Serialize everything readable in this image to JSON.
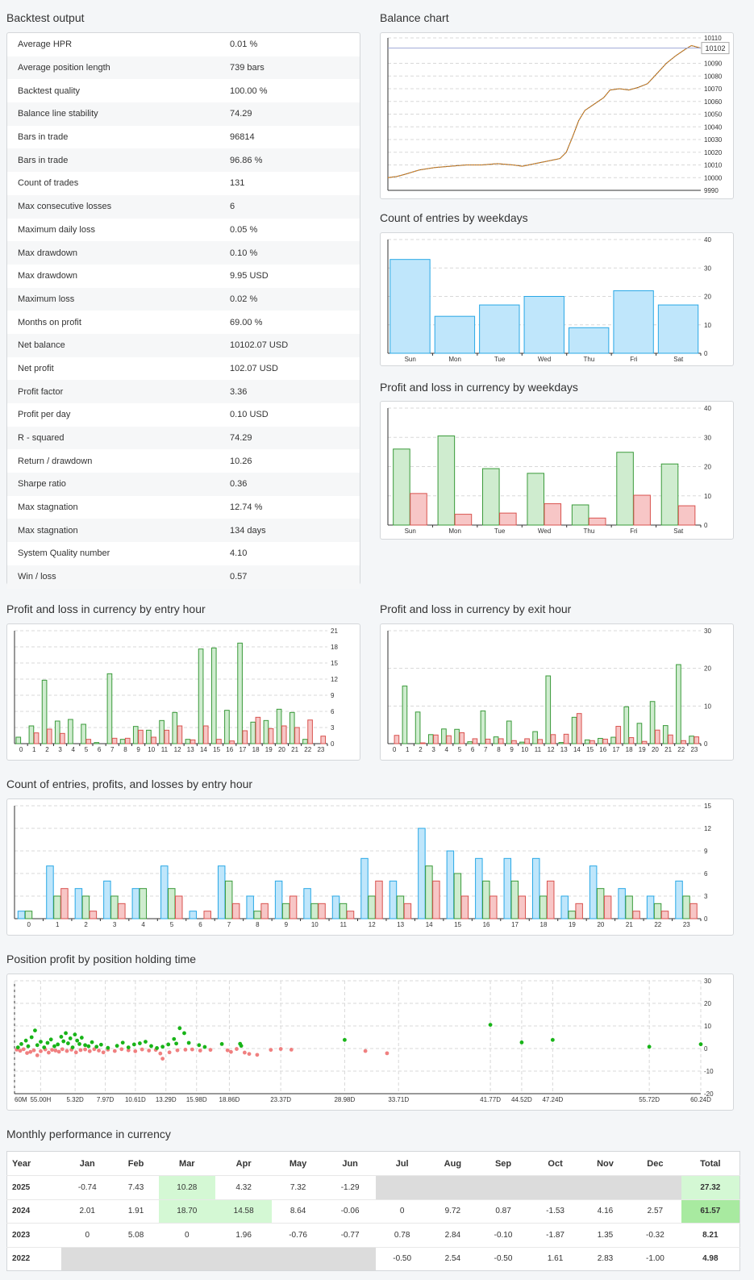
{
  "sections": {
    "backtest": "Backtest output",
    "balance": "Balance chart",
    "weekday_count": "Count of entries by weekdays",
    "weekday_pl": "Profit and loss in currency by weekdays",
    "entry_hour_pl": "Profit and loss in currency by entry hour",
    "exit_hour_pl": "Profit and loss in currency by exit hour",
    "entry_hour_count": "Count of entries, profits, and losses by entry hour",
    "holding_time": "Position profit by position holding time",
    "monthly": "Monthly performance in currency"
  },
  "stats": [
    {
      "label": "Average HPR",
      "value": "0.01 %"
    },
    {
      "label": "Average position length",
      "value": "739 bars"
    },
    {
      "label": "Backtest quality",
      "value": "100.00 %"
    },
    {
      "label": "Balance line stability",
      "value": "74.29"
    },
    {
      "label": "Bars in trade",
      "value": "96814"
    },
    {
      "label": "Bars in trade",
      "value": "96.86 %"
    },
    {
      "label": "Count of trades",
      "value": "131"
    },
    {
      "label": "Max consecutive losses",
      "value": "6"
    },
    {
      "label": "Maximum daily loss",
      "value": "0.05 %"
    },
    {
      "label": "Max drawdown",
      "value": "0.10 %"
    },
    {
      "label": "Max drawdown",
      "value": "9.95 USD"
    },
    {
      "label": "Maximum loss",
      "value": "0.02 %"
    },
    {
      "label": "Months on profit",
      "value": "69.00 %"
    },
    {
      "label": "Net balance",
      "value": "10102.07 USD"
    },
    {
      "label": "Net profit",
      "value": "102.07 USD"
    },
    {
      "label": "Profit factor",
      "value": "3.36"
    },
    {
      "label": "Profit per day",
      "value": "0.10 USD"
    },
    {
      "label": "R - squared",
      "value": "74.29"
    },
    {
      "label": "Return / drawdown",
      "value": "10.26"
    },
    {
      "label": "Sharpe ratio",
      "value": "0.36"
    },
    {
      "label": "Max stagnation",
      "value": "12.74 %"
    },
    {
      "label": "Max stagnation",
      "value": "134 days"
    },
    {
      "label": "System Quality number",
      "value": "4.10"
    },
    {
      "label": "Win / loss",
      "value": "0.57"
    }
  ],
  "chart_data": [
    {
      "id": "balance",
      "type": "line",
      "ylim": [
        9990,
        10110
      ],
      "yticks": [
        9990,
        10000,
        10010,
        10020,
        10030,
        10040,
        10050,
        10060,
        10070,
        10080,
        10090,
        10102,
        10110
      ],
      "current_label": "10102",
      "current_value": 10102,
      "points": [
        [
          0,
          10000
        ],
        [
          0.03,
          10001
        ],
        [
          0.06,
          10003
        ],
        [
          0.1,
          10006
        ],
        [
          0.15,
          10008
        ],
        [
          0.2,
          10009
        ],
        [
          0.25,
          10010
        ],
        [
          0.3,
          10010
        ],
        [
          0.35,
          10011
        ],
        [
          0.4,
          10010
        ],
        [
          0.43,
          10009
        ],
        [
          0.47,
          10011
        ],
        [
          0.51,
          10013
        ],
        [
          0.55,
          10015
        ],
        [
          0.57,
          10020
        ],
        [
          0.59,
          10032
        ],
        [
          0.61,
          10045
        ],
        [
          0.63,
          10053
        ],
        [
          0.66,
          10058
        ],
        [
          0.69,
          10063
        ],
        [
          0.71,
          10069
        ],
        [
          0.74,
          10070
        ],
        [
          0.77,
          10069
        ],
        [
          0.8,
          10071
        ],
        [
          0.83,
          10074
        ],
        [
          0.86,
          10082
        ],
        [
          0.89,
          10090
        ],
        [
          0.92,
          10096
        ],
        [
          0.95,
          10101
        ],
        [
          0.97,
          10104
        ],
        [
          1,
          10102
        ]
      ]
    },
    {
      "id": "weekday_count",
      "type": "bar",
      "categories": [
        "Sun",
        "Mon",
        "Tue",
        "Wed",
        "Thu",
        "Fri",
        "Sat"
      ],
      "ylim": [
        0,
        40
      ],
      "yticks": [
        0,
        10,
        20,
        30,
        40
      ],
      "series": [
        {
          "color": "#bfe6fb",
          "values": [
            33,
            13,
            17,
            20,
            9,
            22,
            17
          ]
        }
      ]
    },
    {
      "id": "weekday_pl",
      "type": "bar",
      "categories": [
        "Sun",
        "Mon",
        "Tue",
        "Wed",
        "Thu",
        "Fri",
        "Sat"
      ],
      "ylim": [
        0,
        40
      ],
      "yticks": [
        0,
        10,
        20,
        30,
        40
      ],
      "series": [
        {
          "color": "#cfeccf",
          "values": [
            26,
            30.5,
            19.3,
            17.7,
            6.9,
            24.9,
            20.9
          ]
        },
        {
          "color": "#f7c6c6",
          "values": [
            10.8,
            3.7,
            4.1,
            7.3,
            2.4,
            10.2,
            6.6
          ]
        }
      ]
    },
    {
      "id": "entry_hour_pl",
      "type": "bar",
      "categories": [
        "0",
        "1",
        "2",
        "3",
        "4",
        "5",
        "6",
        "7",
        "8",
        "9",
        "10",
        "11",
        "12",
        "13",
        "14",
        "15",
        "16",
        "17",
        "18",
        "19",
        "20",
        "21",
        "22",
        "23"
      ],
      "ylim": [
        0,
        21
      ],
      "yticks": [
        0,
        3,
        6,
        9,
        12,
        15,
        18,
        21
      ],
      "series": [
        {
          "color": "#cfeccf",
          "values": [
            1.2,
            3.3,
            11.8,
            4.2,
            4.5,
            3.6,
            0.2,
            13,
            0.8,
            3.2,
            2.5,
            4.3,
            5.8,
            0.8,
            17.6,
            17.8,
            6.2,
            18.7,
            4,
            4.3,
            6.4,
            5.8,
            0.8,
            0
          ]
        },
        {
          "color": "#f7c6c6",
          "values": [
            0,
            2,
            2.7,
            1.9,
            0,
            0.8,
            0,
            1,
            1,
            2.5,
            1.2,
            2.5,
            3.3,
            0.7,
            3.3,
            0.8,
            0.5,
            2.4,
            4.9,
            2.8,
            3.3,
            3,
            4.4,
            1.4
          ]
        }
      ]
    },
    {
      "id": "exit_hour_pl",
      "type": "bar",
      "categories": [
        "0",
        "1",
        "2",
        "3",
        "4",
        "5",
        "6",
        "7",
        "8",
        "9",
        "10",
        "11",
        "12",
        "13",
        "14",
        "15",
        "16",
        "17",
        "18",
        "19",
        "20",
        "21",
        "22",
        "23"
      ],
      "ylim": [
        0,
        30
      ],
      "yticks": [
        0,
        10,
        20,
        30
      ],
      "series": [
        {
          "color": "#cfeccf",
          "values": [
            0,
            15.3,
            8.4,
            2.4,
            3.9,
            3.8,
            0.5,
            8.7,
            1.8,
            6,
            0.4,
            3.2,
            18,
            0.3,
            7,
            1,
            1.4,
            1.7,
            9.8,
            5.4,
            11.2,
            4.8,
            21,
            2
          ]
        },
        {
          "color": "#f7c6c6",
          "values": [
            2.2,
            0,
            0.2,
            2.3,
            2.1,
            2.9,
            1.3,
            1.2,
            1.3,
            0.8,
            1.3,
            1.1,
            2.4,
            2.5,
            8,
            0.8,
            1.2,
            4.6,
            1.6,
            0.6,
            3.6,
            2.3,
            0.8,
            1.8
          ]
        }
      ]
    },
    {
      "id": "entry_hour_count",
      "type": "bar",
      "categories": [
        "0",
        "1",
        "2",
        "3",
        "4",
        "5",
        "6",
        "7",
        "8",
        "9",
        "10",
        "11",
        "12",
        "13",
        "14",
        "15",
        "16",
        "17",
        "18",
        "19",
        "20",
        "21",
        "22",
        "23"
      ],
      "ylim": [
        0,
        15
      ],
      "yticks": [
        0,
        3,
        6,
        9,
        12,
        15
      ],
      "series": [
        {
          "color": "#bfe6fb",
          "values": [
            1,
            7,
            4,
            5,
            4,
            7,
            1,
            7,
            3,
            5,
            4,
            3,
            8,
            5,
            12,
            9,
            8,
            8,
            8,
            3,
            7,
            4,
            3,
            5
          ]
        },
        {
          "color": "#cfeccf",
          "values": [
            1,
            3,
            3,
            3,
            4,
            4,
            0,
            5,
            1,
            2,
            2,
            2,
            3,
            3,
            7,
            6,
            5,
            5,
            3,
            1,
            4,
            3,
            2,
            3
          ]
        },
        {
          "color": "#f7c6c6",
          "values": [
            0,
            4,
            1,
            2,
            0,
            3,
            1,
            2,
            2,
            3,
            2,
            1,
            5,
            2,
            5,
            3,
            3,
            3,
            5,
            2,
            3,
            1,
            1,
            2
          ]
        }
      ]
    },
    {
      "id": "holding_time",
      "type": "scatter",
      "ylim": [
        -20,
        30
      ],
      "yticks": [
        -20,
        -10,
        0,
        10,
        20,
        30
      ],
      "xticks": [
        "60M",
        "55.00H",
        "5.32D",
        "7.97D",
        "10.61D",
        "13.29D",
        "15.98D",
        "18.86D",
        "23.37D",
        "28.98D",
        "33.71D",
        "41.77D",
        "44.52D",
        "47.24D",
        "55.72D",
        "60.24D"
      ],
      "xmax": 60.24,
      "profit_points": [
        [
          0.3,
          0.5
        ],
        [
          0.6,
          2
        ],
        [
          1,
          3.5
        ],
        [
          1.2,
          1
        ],
        [
          1.5,
          5
        ],
        [
          1.8,
          8
        ],
        [
          2,
          1.5
        ],
        [
          2.3,
          3
        ],
        [
          2.6,
          0.5
        ],
        [
          2.9,
          2.5
        ],
        [
          3.2,
          4
        ],
        [
          3.5,
          1
        ],
        [
          3.8,
          1.8
        ],
        [
          4.1,
          5.2
        ],
        [
          4.3,
          3.2
        ],
        [
          4.5,
          6.8
        ],
        [
          4.7,
          2.3
        ],
        [
          4.9,
          4.5
        ],
        [
          5.1,
          0.5
        ],
        [
          5.3,
          6.2
        ],
        [
          5.5,
          3.5
        ],
        [
          5.7,
          2
        ],
        [
          5.9,
          4.8
        ],
        [
          6.2,
          1.5
        ],
        [
          6.5,
          1
        ],
        [
          6.8,
          2.8
        ],
        [
          7.2,
          0.8
        ],
        [
          7.6,
          1.7
        ],
        [
          8.2,
          0.3
        ],
        [
          9,
          1.2
        ],
        [
          9.5,
          2.6
        ],
        [
          10,
          0.5
        ],
        [
          10.5,
          1.8
        ],
        [
          11,
          2.3
        ],
        [
          11.5,
          3
        ],
        [
          12,
          1.1
        ],
        [
          12.5,
          0.2
        ],
        [
          13,
          0.8
        ],
        [
          13.5,
          1.8
        ],
        [
          14,
          4.2
        ],
        [
          14.2,
          2.2
        ],
        [
          14.5,
          9
        ],
        [
          14.9,
          6.8
        ],
        [
          15.3,
          2.5
        ],
        [
          16.2,
          1.5
        ],
        [
          16.7,
          0.7
        ],
        [
          18.2,
          2
        ],
        [
          19.8,
          2.1
        ],
        [
          19.9,
          1.2
        ],
        [
          28.98,
          3.8
        ],
        [
          41.77,
          10.5
        ],
        [
          44.52,
          2.7
        ],
        [
          47.24,
          3.8
        ],
        [
          55.72,
          0.8
        ],
        [
          60.24,
          1.9
        ]
      ],
      "loss_points": [
        [
          0.2,
          -0.5
        ],
        [
          0.5,
          -1
        ],
        [
          0.8,
          -0.3
        ],
        [
          1.1,
          -2
        ],
        [
          1.4,
          -1.5
        ],
        [
          1.7,
          -0.8
        ],
        [
          2,
          -3
        ],
        [
          2.3,
          -1.2
        ],
        [
          2.7,
          -0.4
        ],
        [
          3,
          -1.8
        ],
        [
          3.3,
          -0.6
        ],
        [
          3.6,
          -0.9
        ],
        [
          3.9,
          -1.4
        ],
        [
          4.2,
          -0.3
        ],
        [
          4.6,
          -1.1
        ],
        [
          5,
          -0.5
        ],
        [
          5.4,
          -1.7
        ],
        [
          5.8,
          -0.7
        ],
        [
          6.2,
          -0.4
        ],
        [
          6.6,
          -1.2
        ],
        [
          7,
          -0.3
        ],
        [
          7.4,
          -0.9
        ],
        [
          7.8,
          -1.7
        ],
        [
          8.2,
          -0.5
        ],
        [
          8.8,
          -1.1
        ],
        [
          9.4,
          -0.3
        ],
        [
          10,
          -0.8
        ],
        [
          10.6,
          -1.2
        ],
        [
          11.2,
          -0.4
        ],
        [
          11.8,
          -0.9
        ],
        [
          12.4,
          -0.6
        ],
        [
          12.8,
          -2.2
        ],
        [
          13,
          -4.5
        ],
        [
          13.6,
          -1.7
        ],
        [
          14.3,
          -0.8
        ],
        [
          15,
          -0.5
        ],
        [
          15.6,
          -0.4
        ],
        [
          16.3,
          -0.9
        ],
        [
          17.2,
          -0.6
        ],
        [
          18.7,
          -0.8
        ],
        [
          19,
          -1.5
        ],
        [
          19.5,
          -0.2
        ],
        [
          20.2,
          -1.8
        ],
        [
          20.6,
          -2.4
        ],
        [
          21.3,
          -2.8
        ],
        [
          22.5,
          -0.6
        ],
        [
          23.37,
          -0.2
        ],
        [
          24.3,
          -0.5
        ],
        [
          30.8,
          -1.1
        ],
        [
          32.7,
          -2.1
        ]
      ]
    }
  ],
  "monthly": {
    "headers": [
      "Year",
      "Jan",
      "Feb",
      "Mar",
      "Apr",
      "May",
      "Jun",
      "Jul",
      "Aug",
      "Sep",
      "Oct",
      "Nov",
      "Dec",
      "Total"
    ],
    "rows": [
      {
        "year": "2025",
        "cells": [
          "-0.74",
          "7.43",
          "10.28",
          "4.32",
          "7.32",
          "-1.29",
          "",
          "",
          "",
          "",
          "",
          ""
        ],
        "total": "27.32"
      },
      {
        "year": "2024",
        "cells": [
          "2.01",
          "1.91",
          "18.70",
          "14.58",
          "8.64",
          "-0.06",
          "0",
          "9.72",
          "0.87",
          "-1.53",
          "4.16",
          "2.57"
        ],
        "total": "61.57"
      },
      {
        "year": "2023",
        "cells": [
          "0",
          "5.08",
          "0",
          "1.96",
          "-0.76",
          "-0.77",
          "0.78",
          "2.84",
          "-0.10",
          "-1.87",
          "1.35",
          "-0.32"
        ],
        "total": "8.21"
      },
      {
        "year": "2022",
        "cells": [
          "",
          "",
          "",
          "",
          "",
          "",
          "-0.50",
          "2.54",
          "-0.50",
          "1.61",
          "2.83",
          "-1.00"
        ],
        "total": "4.98"
      }
    ]
  }
}
